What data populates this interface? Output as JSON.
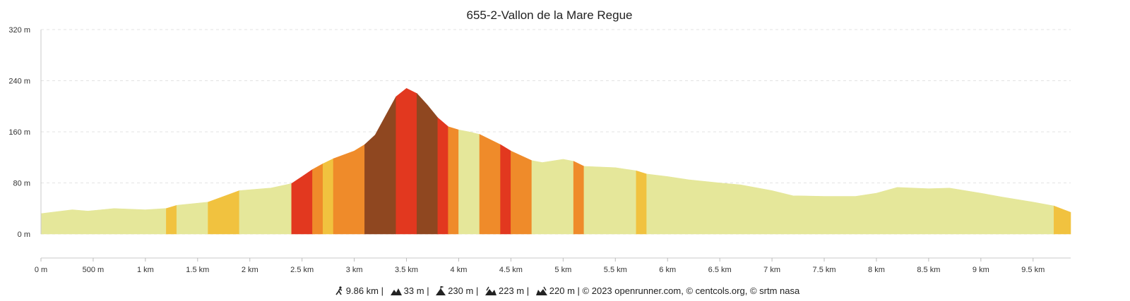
{
  "colors": {
    "flat": "#e5e79a",
    "light": "#f1c23f",
    "moderate": "#ef8b2a",
    "steep": "#e2381f",
    "very_steep": "#8f4720",
    "grid": "#e3e3e3",
    "text": "#222222"
  },
  "chart_data": {
    "type": "area",
    "title": "655-2-Vallon de la Mare Regue",
    "ylim": [
      0,
      320
    ],
    "xlim": [
      0,
      9.86
    ],
    "y_ticks": [
      0,
      80,
      160,
      240,
      320
    ],
    "y_tick_labels": [
      "0 m",
      "80 m",
      "160 m",
      "240 m",
      "320 m"
    ],
    "x_ticks": [
      0,
      0.5,
      1,
      1.5,
      2,
      2.5,
      3,
      3.5,
      4,
      4.5,
      5,
      5.5,
      6,
      6.5,
      7,
      7.5,
      8,
      8.5,
      9,
      9.5
    ],
    "x_tick_labels": [
      "0 m",
      "500 m",
      "1 km",
      "1.5 km",
      "2 km",
      "2.5 km",
      "3 km",
      "3.5 km",
      "4 km",
      "4.5 km",
      "5 km",
      "5.5 km",
      "6 km",
      "6.5 km",
      "7 km",
      "7.5 km",
      "8 km",
      "8.5 km",
      "9 km",
      "9.5 km"
    ],
    "grid": true,
    "x_km": [
      0,
      0.1,
      0.3,
      0.45,
      0.7,
      1.0,
      1.2,
      1.3,
      1.6,
      1.9,
      2.2,
      2.4,
      2.5,
      2.6,
      2.7,
      2.8,
      3.0,
      3.1,
      3.2,
      3.4,
      3.5,
      3.6,
      3.7,
      3.8,
      3.9,
      4.0,
      4.1,
      4.2,
      4.3,
      4.4,
      4.5,
      4.7,
      4.8,
      5.0,
      5.1,
      5.2,
      5.5,
      5.7,
      5.8,
      6.0,
      6.2,
      6.5,
      6.7,
      7.0,
      7.2,
      7.5,
      7.8,
      8.0,
      8.2,
      8.5,
      8.7,
      9.0,
      9.2,
      9.5,
      9.7,
      9.86
    ],
    "elevation_m": [
      32,
      34,
      38,
      36,
      40,
      38,
      40,
      45,
      50,
      68,
      72,
      79,
      90,
      101,
      110,
      118,
      130,
      140,
      155,
      215,
      228,
      220,
      202,
      182,
      168,
      163,
      160,
      156,
      148,
      140,
      130,
      115,
      112,
      117,
      114,
      106,
      104,
      99,
      94,
      90,
      85,
      80,
      77,
      68,
      60,
      59,
      59,
      64,
      73,
      71,
      72,
      64,
      58,
      50,
      44,
      34
    ],
    "segments": [
      {
        "from": 0,
        "to": 1.2,
        "grade": "flat"
      },
      {
        "from": 1.2,
        "to": 1.3,
        "grade": "light"
      },
      {
        "from": 1.3,
        "to": 1.6,
        "grade": "flat"
      },
      {
        "from": 1.6,
        "to": 1.9,
        "grade": "light"
      },
      {
        "from": 1.9,
        "to": 2.4,
        "grade": "flat"
      },
      {
        "from": 2.4,
        "to": 2.6,
        "grade": "steep"
      },
      {
        "from": 2.6,
        "to": 2.7,
        "grade": "moderate"
      },
      {
        "from": 2.7,
        "to": 2.8,
        "grade": "light"
      },
      {
        "from": 2.8,
        "to": 3.1,
        "grade": "moderate"
      },
      {
        "from": 3.1,
        "to": 3.4,
        "grade": "very_steep"
      },
      {
        "from": 3.4,
        "to": 3.6,
        "grade": "steep"
      },
      {
        "from": 3.6,
        "to": 3.8,
        "grade": "very_steep"
      },
      {
        "from": 3.8,
        "to": 3.9,
        "grade": "steep"
      },
      {
        "from": 3.9,
        "to": 4.0,
        "grade": "moderate"
      },
      {
        "from": 4.0,
        "to": 4.2,
        "grade": "flat"
      },
      {
        "from": 4.2,
        "to": 4.4,
        "grade": "moderate"
      },
      {
        "from": 4.4,
        "to": 4.5,
        "grade": "steep"
      },
      {
        "from": 4.5,
        "to": 4.7,
        "grade": "moderate"
      },
      {
        "from": 4.7,
        "to": 5.1,
        "grade": "flat"
      },
      {
        "from": 5.1,
        "to": 5.2,
        "grade": "moderate"
      },
      {
        "from": 5.2,
        "to": 5.7,
        "grade": "flat"
      },
      {
        "from": 5.7,
        "to": 5.8,
        "grade": "light"
      },
      {
        "from": 5.8,
        "to": 9.7,
        "grade": "flat"
      },
      {
        "from": 9.7,
        "to": 9.86,
        "grade": "light"
      }
    ]
  },
  "footer": {
    "distance": "9.86 km",
    "sep": "|",
    "min_alt": "33 m",
    "max_alt": "230 m",
    "ascent": "223 m",
    "descent": "220 m",
    "credits": "© 2023 openrunner.com, © centcols.org, © srtm nasa"
  },
  "icons": [
    "hiker-icon",
    "mountain-min-icon",
    "summit-icon",
    "ascent-icon",
    "descent-icon"
  ]
}
